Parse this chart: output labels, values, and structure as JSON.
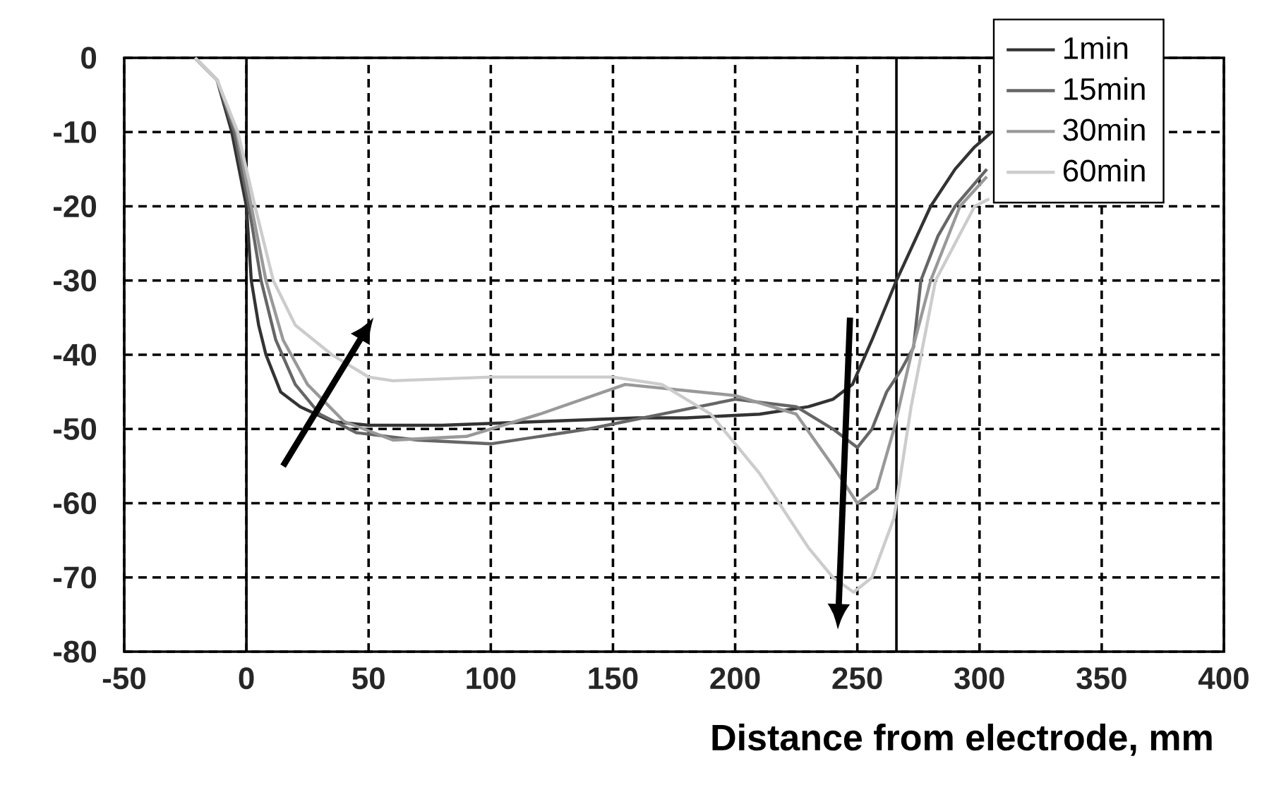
{
  "chart_data": {
    "type": "line",
    "xlabel": "Distance from electrode, mm",
    "xlim": [
      -50,
      400
    ],
    "ylim": [
      -80,
      0
    ],
    "xticks": [
      -50,
      0,
      50,
      100,
      150,
      200,
      250,
      300,
      350,
      400
    ],
    "yticks": [
      -80,
      -70,
      -60,
      -50,
      -40,
      -30,
      -20,
      -10,
      0
    ],
    "grid": true,
    "legend": "top right",
    "ref_lines": [
      {
        "axis": "x",
        "value": 0,
        "color": "#000000"
      },
      {
        "axis": "x",
        "value": 266,
        "color": "#000000"
      }
    ],
    "series": [
      {
        "name": "1min",
        "color": "#333333",
        "x": [
          -21,
          -12,
          -6,
          0,
          2,
          5,
          8,
          14,
          22,
          35,
          50,
          80,
          120,
          160,
          180,
          210,
          230,
          240,
          248,
          256,
          266,
          280,
          290,
          298,
          305
        ],
        "values": [
          0,
          -3,
          -10,
          -20,
          -30,
          -36,
          -40,
          -45,
          -47,
          -49,
          -49.5,
          -49.5,
          -49,
          -48.5,
          -48.5,
          -48,
          -47,
          -46,
          -44,
          -38,
          -30,
          -20,
          -15,
          -12,
          -10
        ]
      },
      {
        "name": "15min",
        "color": "#666666",
        "x": [
          -21,
          -12,
          -5,
          1,
          6,
          12,
          20,
          30,
          45,
          70,
          100,
          140,
          170,
          200,
          225,
          240,
          250,
          256,
          262,
          268,
          273,
          276,
          283,
          290,
          303
        ],
        "values": [
          0,
          -3,
          -10,
          -20,
          -30,
          -38,
          -44,
          -48,
          -50.5,
          -51.5,
          -52,
          -50,
          -48,
          -46,
          -47,
          -50,
          -52.5,
          -50,
          -45,
          -42,
          -39,
          -30,
          -24,
          -20,
          -15
        ]
      },
      {
        "name": "30min",
        "color": "#999999",
        "x": [
          -21,
          -12,
          -4,
          2,
          8,
          15,
          25,
          40,
          60,
          90,
          120,
          155,
          200,
          225,
          240,
          250,
          258,
          265,
          272,
          280,
          292,
          303
        ],
        "values": [
          0,
          -3,
          -10,
          -20,
          -30,
          -38,
          -44,
          -49,
          -51.5,
          -51,
          -48,
          -44,
          -45.5,
          -48,
          -55,
          -60,
          -58,
          -50,
          -40,
          -30,
          -20,
          -16
        ]
      },
      {
        "name": "60min",
        "color": "#cccccc",
        "x": [
          -21,
          -12,
          -3.5,
          3.5,
          11,
          20,
          35,
          50,
          60,
          100,
          150,
          170,
          190,
          210,
          230,
          240,
          248.5,
          256,
          265,
          272,
          282,
          298,
          304
        ],
        "values": [
          0,
          -3,
          -10,
          -20,
          -30,
          -36,
          -40,
          -43,
          -43.5,
          -43,
          -43,
          -44,
          -48,
          -56,
          -66,
          -70,
          -72,
          -70,
          -62,
          -47,
          -30,
          -20,
          -19
        ]
      }
    ]
  }
}
